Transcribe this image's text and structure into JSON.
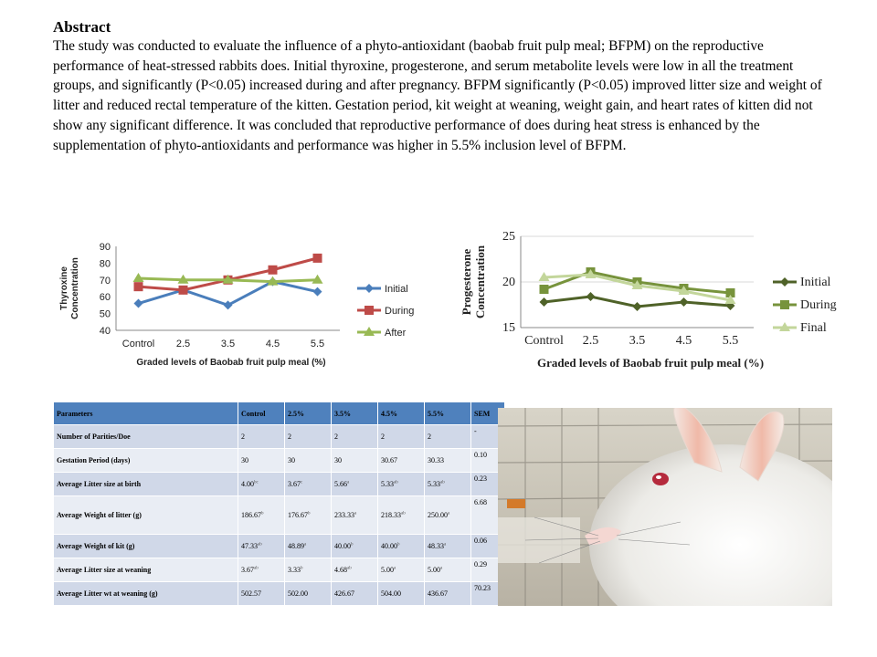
{
  "abstract": {
    "heading": "Abstract",
    "text": "The study was conducted to evaluate the influence of a phyto-antioxidant (baobab fruit pulp meal; BFPM) on the reproductive performance of heat-stressed rabbits does. Initial thyroxine, progesterone, and serum metabolite levels were low in all the treatment groups, and significantly (P<0.05) increased during and after pregnancy. BFPM significantly (P<0.05) improved litter size and weight of litter and reduced rectal temperature of the kitten. Gestation period, kit weight at weaning, weight gain, and heart rates of kitten did not show any significant difference.  It was concluded that reproductive performance of does during heat stress is enhanced by the supplementation of phyto-antioxidants and performance was higher in 5.5% inclusion level of BFPM."
  },
  "chart_data": [
    {
      "type": "line",
      "title": "",
      "xlabel": "Graded levels of Baobab  fruit pulp meal (%)",
      "ylabel": "Thyroxine Concentration",
      "categories": [
        "Control",
        "2.5",
        "3.5",
        "4.5",
        "5.5"
      ],
      "ylim": [
        40,
        90
      ],
      "yticks": [
        40,
        50,
        60,
        70,
        80,
        90
      ],
      "legend_position": "right",
      "series": [
        {
          "name": "Initial",
          "color": "#4a7ebb",
          "marker": "diamond",
          "values": [
            56,
            64,
            55,
            69,
            63
          ]
        },
        {
          "name": "During",
          "color": "#be4b48",
          "marker": "square",
          "values": [
            66,
            64,
            70,
            76,
            83
          ]
        },
        {
          "name": "After",
          "color": "#98b954",
          "marker": "triangle",
          "values": [
            71,
            70,
            70,
            69,
            70
          ]
        }
      ]
    },
    {
      "type": "line",
      "title": "",
      "xlabel": "Graded levels of Baobab fruit pulp meal (%)",
      "ylabel": "Progesterone Concentration",
      "categories": [
        "Control",
        "2.5",
        "3.5",
        "4.5",
        "5.5"
      ],
      "ylim": [
        15,
        25
      ],
      "yticks": [
        15,
        20,
        25
      ],
      "legend_position": "right",
      "series": [
        {
          "name": "Initial",
          "color": "#4f6228",
          "marker": "diamond",
          "values": [
            17.8,
            18.4,
            17.3,
            17.8,
            17.4
          ]
        },
        {
          "name": "During",
          "color": "#77933c",
          "marker": "square",
          "values": [
            19.2,
            21.1,
            20.0,
            19.3,
            18.8
          ]
        },
        {
          "name": "Final",
          "color": "#c3d69b",
          "marker": "triangle",
          "values": [
            20.5,
            20.8,
            19.6,
            19.0,
            18.0
          ]
        }
      ]
    }
  ],
  "table": {
    "headers": [
      "Parameters",
      "Control",
      "2.5%",
      "3.5%",
      "4.5%",
      "5.5%",
      "SEM"
    ],
    "rows": [
      {
        "param": "Number of Parities/Doe",
        "values": [
          [
            "2",
            ""
          ],
          [
            "2",
            ""
          ],
          [
            "2",
            ""
          ],
          [
            "2",
            ""
          ],
          [
            "2",
            ""
          ]
        ],
        "sem": "-"
      },
      {
        "param": "Gestation Period (days)",
        "values": [
          [
            "30",
            ""
          ],
          [
            "30",
            ""
          ],
          [
            "30",
            ""
          ],
          [
            "30.67",
            ""
          ],
          [
            "30.33",
            ""
          ]
        ],
        "sem": "0.10"
      },
      {
        "param": "Average Litter size at birth",
        "values": [
          [
            "4.00",
            "bc"
          ],
          [
            "3.67",
            "c"
          ],
          [
            "5.66",
            "a"
          ],
          [
            "5.33",
            "ab"
          ],
          [
            "5.33",
            "ab"
          ]
        ],
        "sem": "0.23"
      },
      {
        "param": "Average Weight of litter (g)",
        "values": [
          [
            "186.67",
            "b"
          ],
          [
            "176.67",
            "b"
          ],
          [
            "233.33",
            "a"
          ],
          [
            "218.33",
            "ab"
          ],
          [
            "250.00",
            "a"
          ]
        ],
        "sem": "6.68"
      },
      {
        "param": "Average Weight of kit (g)",
        "values": [
          [
            "47.33",
            "ab"
          ],
          [
            "48.89",
            "a"
          ],
          [
            "40.00",
            "b"
          ],
          [
            "40.00",
            "b"
          ],
          [
            "48.33",
            "a"
          ]
        ],
        "sem": "0.06"
      },
      {
        "param": "Average Litter size at weaning",
        "values": [
          [
            "3.67",
            "ab"
          ],
          [
            "3.33",
            "b"
          ],
          [
            "4.68",
            "ab"
          ],
          [
            "5.00",
            "a"
          ],
          [
            "5.00",
            "a"
          ]
        ],
        "sem": "0.29"
      },
      {
        "param": "Average Litter wt at weaning (g)",
        "values": [
          [
            "502.57",
            ""
          ],
          [
            "502.00",
            ""
          ],
          [
            "426.67",
            ""
          ],
          [
            "504.00",
            ""
          ],
          [
            "436.67",
            ""
          ]
        ],
        "sem": "70.23"
      }
    ]
  },
  "photo": {
    "subject": "white rabbit in cage"
  }
}
